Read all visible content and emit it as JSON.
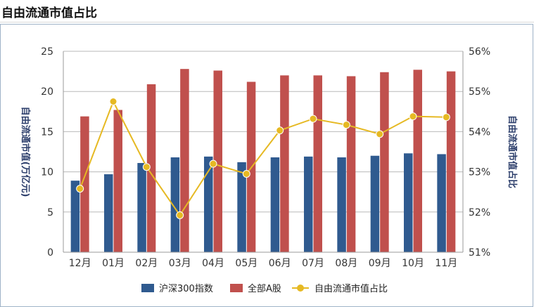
{
  "page": {
    "title": "自由流通市值占比"
  },
  "colors": {
    "bar_hs300": "#2f5a8f",
    "bar_all_a": "#c0504d",
    "line_ratio": "#e6b923",
    "grid": "#b9b9b9",
    "axis": "#9a9a9a"
  },
  "chart_data": {
    "type": "bar",
    "title": "自由流通市值占比",
    "categories": [
      "12月",
      "01月",
      "02月",
      "03月",
      "04月",
      "05月",
      "06月",
      "07月",
      "08月",
      "09月",
      "10月",
      "11月"
    ],
    "ylabel_left": "自由流通市值(万亿元)",
    "ylabel_right": "自由流通市值占比",
    "ylim_left": [
      0,
      25
    ],
    "yticks_left": [
      "0",
      "5",
      "10",
      "15",
      "20",
      "25"
    ],
    "ylim_right": [
      51,
      56
    ],
    "yticks_right": [
      "51%",
      "52%",
      "53%",
      "54%",
      "55%",
      "56%"
    ],
    "grid": true,
    "legend_position": "bottom",
    "series": [
      {
        "name": "沪深300指数",
        "type": "bar",
        "axis": "left",
        "values": [
          8.9,
          9.7,
          11.1,
          11.8,
          11.9,
          11.2,
          11.8,
          11.9,
          11.8,
          12.0,
          12.3,
          12.2
        ]
      },
      {
        "name": "全部A股",
        "type": "bar",
        "axis": "left",
        "values": [
          16.9,
          17.7,
          20.9,
          22.8,
          22.6,
          21.2,
          22.0,
          22.0,
          21.9,
          22.4,
          22.7,
          22.5
        ]
      },
      {
        "name": "自由流通市值占比",
        "type": "line",
        "axis": "right",
        "values": [
          52.58,
          54.75,
          53.12,
          51.92,
          53.2,
          52.95,
          54.03,
          54.32,
          54.17,
          53.94,
          54.38,
          54.36
        ]
      }
    ]
  }
}
